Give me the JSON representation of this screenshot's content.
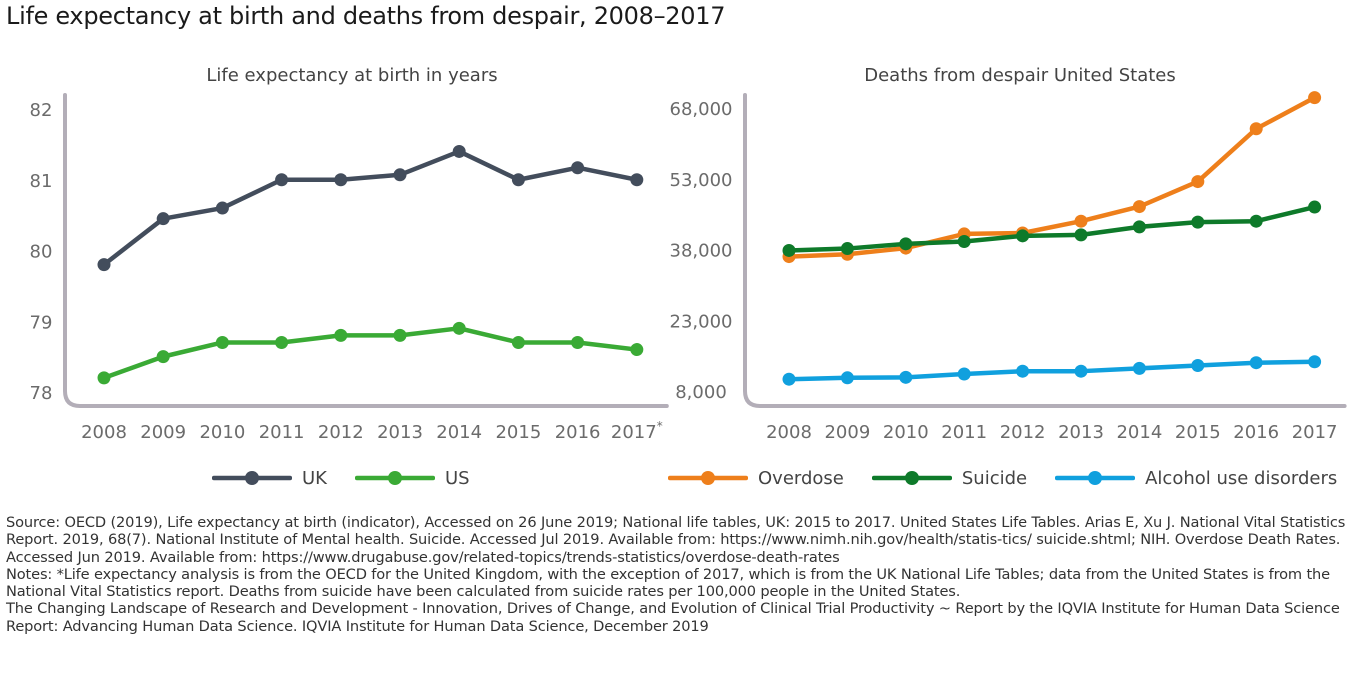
{
  "title": "Life expectancy at birth and deaths from despair, 2008–2017",
  "chart_data": [
    {
      "type": "line",
      "title": "Life expectancy at birth in years",
      "x": [
        "2008",
        "2009",
        "2010",
        "2011",
        "2012",
        "2013",
        "2014",
        "2015",
        "2016",
        "2017"
      ],
      "x_tick_labels": [
        "2008",
        "2009",
        "2010",
        "2011",
        "2012",
        "2013",
        "2014",
        "2015",
        "2016",
        "2017*"
      ],
      "ylim": [
        78,
        82
      ],
      "yticks": [
        78,
        79,
        80,
        81,
        82
      ],
      "y_tick_labels": [
        "78",
        "79",
        "80",
        "81",
        "82"
      ],
      "series": [
        {
          "name": "UK",
          "color": "#434d5c",
          "values": [
            79.8,
            80.45,
            80.6,
            81.0,
            81.0,
            81.07,
            81.4,
            81.0,
            81.17,
            81.0
          ]
        },
        {
          "name": "US",
          "color": "#3aaa35",
          "values": [
            78.2,
            78.5,
            78.7,
            78.7,
            78.8,
            78.8,
            78.9,
            78.7,
            78.7,
            78.6
          ]
        }
      ],
      "legend": "bottom"
    },
    {
      "type": "line",
      "title": "Deaths from despair United States",
      "x": [
        "2008",
        "2009",
        "2010",
        "2011",
        "2012",
        "2013",
        "2014",
        "2015",
        "2016",
        "2017"
      ],
      "x_tick_labels": [
        "2008",
        "2009",
        "2010",
        "2011",
        "2012",
        "2013",
        "2014",
        "2015",
        "2016",
        "2017"
      ],
      "ylim": [
        8000,
        68000
      ],
      "yticks": [
        8000,
        23000,
        38000,
        53000,
        68000
      ],
      "y_tick_labels": [
        "8,000",
        "23,000",
        "38,000",
        "53,000",
        "68,000"
      ],
      "series": [
        {
          "name": "Overdose",
          "color": "#ee7f1b",
          "values": [
            36500,
            37000,
            38300,
            41300,
            41500,
            44000,
            47100,
            52400,
            63600,
            70200
          ]
        },
        {
          "name": "Suicide",
          "color": "#0e7a2a",
          "values": [
            37800,
            38200,
            39200,
            39700,
            40900,
            41100,
            42800,
            43800,
            44000,
            47000
          ]
        },
        {
          "name": "Alcohol use disorders",
          "color": "#10a0de",
          "values": [
            10500,
            10800,
            10900,
            11600,
            12200,
            12200,
            12800,
            13400,
            14000,
            14200
          ]
        }
      ],
      "legend": "bottom"
    }
  ],
  "notes": {
    "source": "Source: OECD (2019), Life expectancy at birth (indicator), Accessed on 26 June 2019; National life tables, UK: 2015 to 2017. United States Life Tables. Arias E, Xu J. National Vital Statistics Report. 2019, 68(7). National Institute of Mental health. Suicide. Accessed Jul 2019. Available from: https://www.nimh.nih.gov/health/statis-tics/ suicide.shtml; NIH. Overdose Death Rates. Accessed Jun 2019. Available from: https://www.drugabuse.gov/related-topics/trends-statistics/overdose-death-rates",
    "note": "Notes: *Life expectancy analysis is from the OECD for the United Kingdom, with the exception of 2017, which is from the UK National Life Tables; data from the United States is from the National Vital Statistics report. Deaths from suicide have been calculated from suicide rates per 100,000 people in the United States.",
    "report1": "The Changing Landscape of Research and Development - Innovation, Drives of Change, and Evolution of Clinical Trial Productivity ~ Report by the IQVIA Institute for Human Data Science",
    "report2": "Report: Advancing Human Data Science. IQVIA Institute for Human Data Science, December 2019"
  }
}
